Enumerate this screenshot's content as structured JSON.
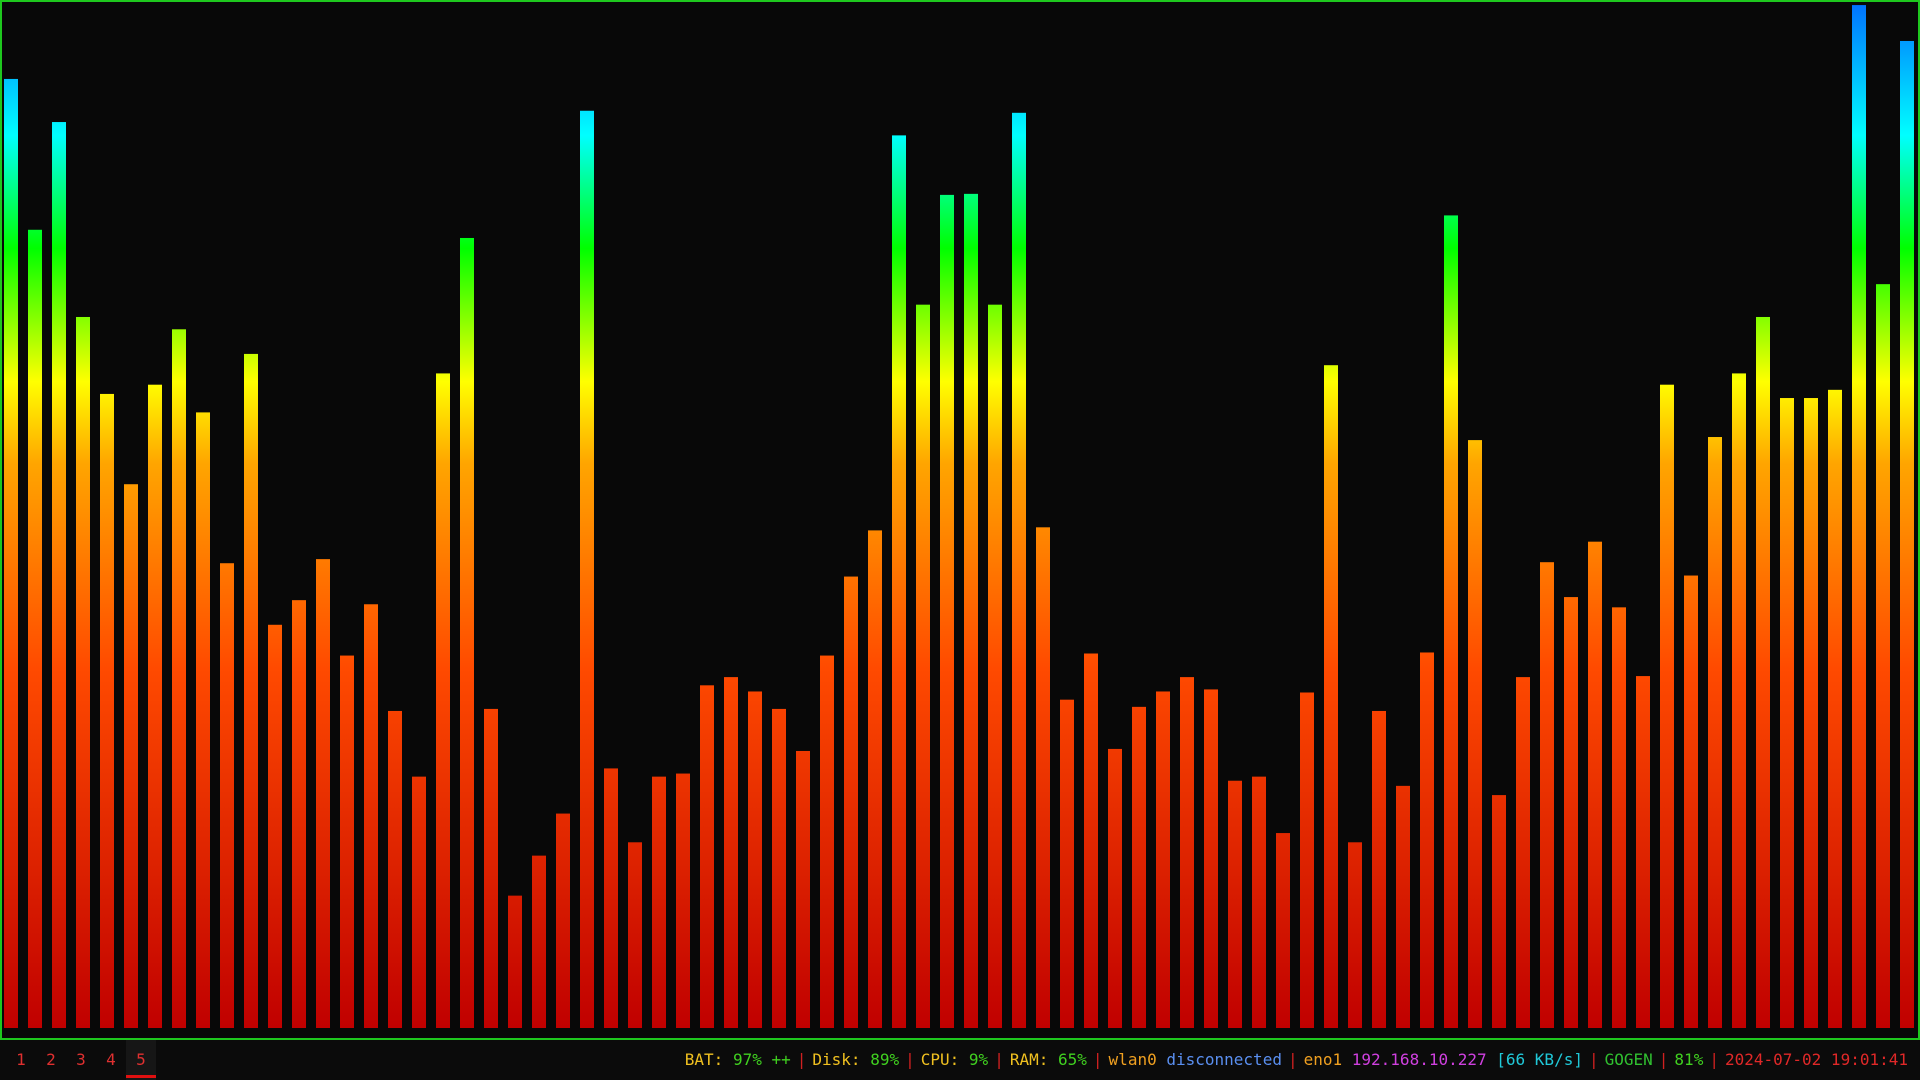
{
  "visualizer": {
    "app": "audio-spectrum-visualizer",
    "gradient_colors": [
      "#c00000",
      "#ff4a00",
      "#ffa500",
      "#ffff00",
      "#00ff00",
      "#00ffff",
      "#0070ff"
    ],
    "bar_levels": [
      0.925,
      0.778,
      0.883,
      0.693,
      0.618,
      0.53,
      0.627,
      0.681,
      0.6,
      0.453,
      0.657,
      0.393,
      0.417,
      0.457,
      0.363,
      0.413,
      0.309,
      0.245,
      0.638,
      0.77,
      0.311,
      0.129,
      0.168,
      0.209,
      0.894,
      0.253,
      0.181,
      0.245,
      0.248,
      0.334,
      0.342,
      0.328,
      0.311,
      0.27,
      0.363,
      0.44,
      0.485,
      0.87,
      0.705,
      0.812,
      0.813,
      0.705,
      0.892,
      0.488,
      0.32,
      0.365,
      0.272,
      0.313,
      0.328,
      0.342,
      0.33,
      0.241,
      0.245,
      0.19,
      0.327,
      0.646,
      0.181,
      0.309,
      0.236,
      0.366,
      0.792,
      0.573,
      0.227,
      0.342,
      0.454,
      0.42,
      0.474,
      0.41,
      0.343,
      0.627,
      0.441,
      0.576,
      0.638,
      0.693,
      0.614,
      0.614,
      0.622,
      0.997,
      0.725,
      0.962
    ]
  },
  "workspaces": [
    "1",
    "2",
    "3",
    "4",
    "5"
  ],
  "active_workspace": "5",
  "status": {
    "bat_label": "BAT:",
    "bat_value": "97% ++",
    "disk_label": "Disk:",
    "disk_value": "89%",
    "cpu_label": "CPU:",
    "cpu_value": "9%",
    "ram_label": "RAM:",
    "ram_value": "65%",
    "wlan_iface": "wlan0",
    "wlan_state": "disconnected",
    "eth_iface": "eno1",
    "eth_ip": "192.168.10.227",
    "eth_rate": "[66 KB/s]",
    "volume_label": "GOGEN",
    "volume_value": "81%",
    "datetime": "2024-07-02 19:01:41",
    "separator": "|"
  }
}
